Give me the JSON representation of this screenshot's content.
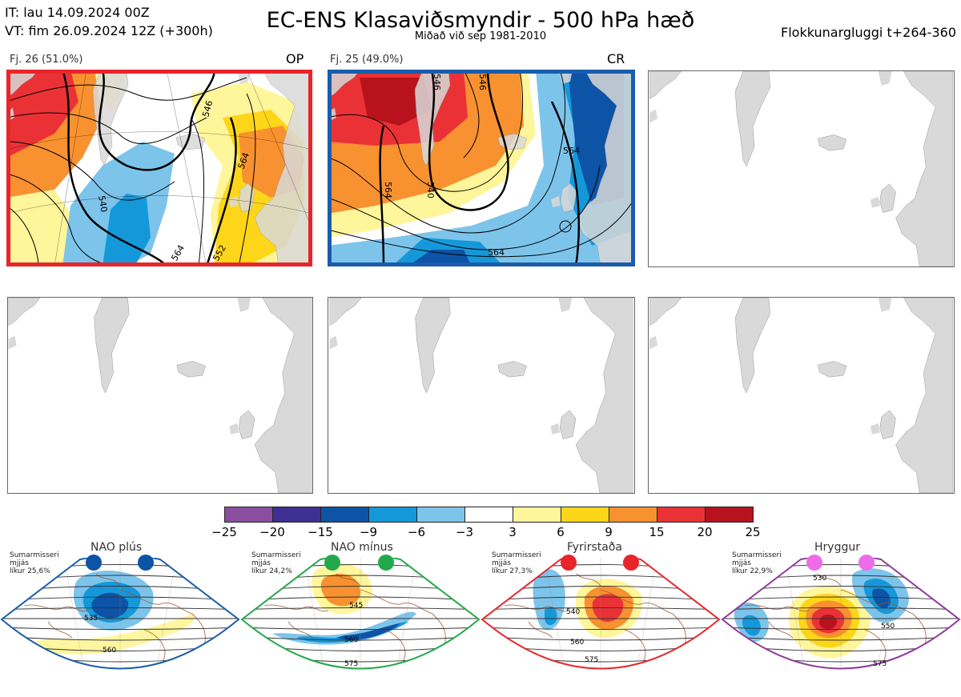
{
  "header": {
    "it": "IT: lau 14.09.2024 00Z",
    "vt": "VT: fim 26.09.2024 12Z  (+300h)",
    "title": "EC-ENS Klasaviðsmyndir - 500 hPa hæð",
    "subtitle": "Miðað við sep 1981-2010",
    "window": "Flokkunargluggi t+264-360"
  },
  "panels": [
    {
      "label": "Fj. 26 (51.0%)",
      "tag": "OP",
      "border": "#e8252a",
      "contours": [
        "546",
        "540",
        "564",
        "564",
        "552"
      ]
    },
    {
      "label": "Fj. 25 (49.0%)",
      "tag": "CR",
      "border": "#1a5cab",
      "contours": [
        "546",
        "546",
        "540",
        "564",
        "564",
        "564"
      ]
    }
  ],
  "colorbar": {
    "colors": [
      "#8a4ea0",
      "#3e2f94",
      "#0d53a6",
      "#1598da",
      "#7dc4eb",
      "#ffffff",
      "#fff59a",
      "#fdd61a",
      "#f8912f",
      "#ea3236",
      "#b8131d"
    ],
    "ticks": [
      "−25",
      "−20",
      "−15",
      "−9",
      "−6",
      "−3",
      "3",
      "6",
      "9",
      "15",
      "20",
      "25"
    ]
  },
  "regimes": [
    {
      "name": "NAO plús",
      "season": "Sumarmisseri",
      "term": "mjjás",
      "prob": "líkur 25,6%",
      "color": "#0d53a6",
      "contours": [
        "535",
        "560"
      ]
    },
    {
      "name": "NAO mínus",
      "season": "Sumarmisseri",
      "term": "mjjás",
      "prob": "líkur 24,2%",
      "color": "#22a84a",
      "contours": [
        "545",
        "560",
        "575"
      ]
    },
    {
      "name": "Fyrirstaða",
      "season": "Sumarmisseri",
      "term": "mjjás",
      "prob": "líkur 27,3%",
      "color": "#e8252a",
      "contours": [
        "540",
        "560",
        "575"
      ]
    },
    {
      "name": "Hryggur",
      "season": "Sumarmisseri",
      "term": "mjjás",
      "prob": "líkur 22,9%",
      "color": "#ee6ce8",
      "contours": [
        "530",
        "550",
        "575"
      ]
    }
  ]
}
